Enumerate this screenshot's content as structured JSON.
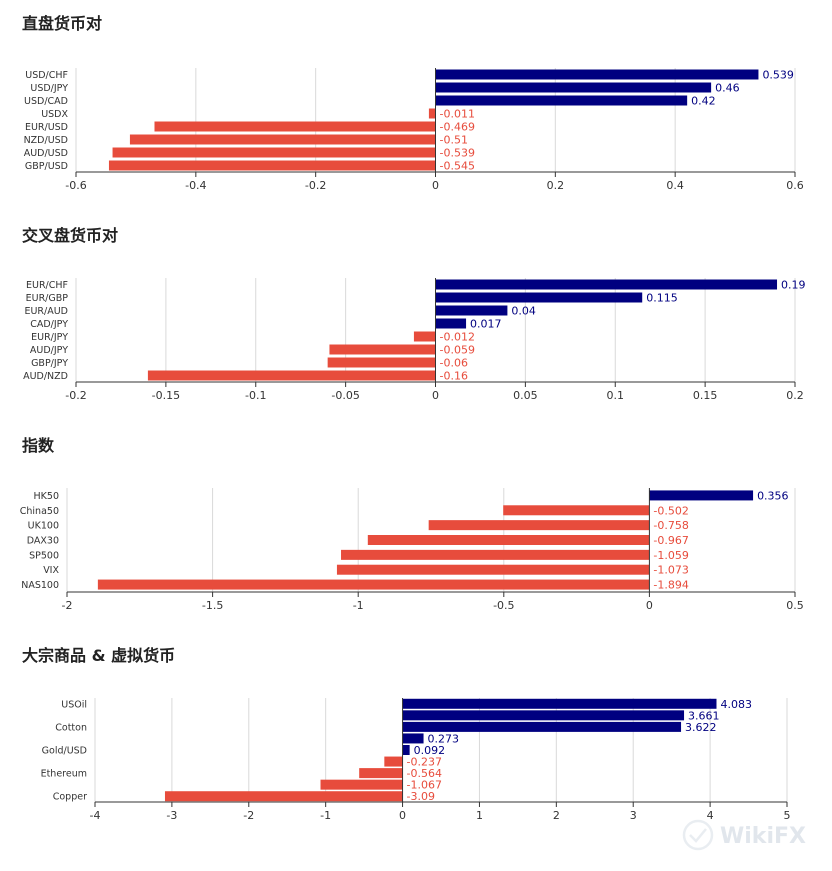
{
  "colors": {
    "positive": "#000080",
    "negative": "#e74c3c",
    "grid": "#d9d9d9",
    "axis": "#333333",
    "tick_text": "#333333"
  },
  "watermark": {
    "text": "WikiFX"
  },
  "chart_data": [
    {
      "type": "bar",
      "orientation": "horizontal",
      "title": "直盘货币对",
      "categories": [
        "USD/CHF",
        "USD/JPY",
        "USD/CAD",
        "USDX",
        "EUR/USD",
        "NZD/USD",
        "AUD/USD",
        "GBP/USD"
      ],
      "values": [
        0.539,
        0.46,
        0.42,
        -0.011,
        -0.469,
        -0.51,
        -0.539,
        -0.545
      ],
      "value_labels": [
        "0.539",
        "0.46",
        "0.42",
        "-0.011",
        "-0.469",
        "-0.51",
        "-0.539",
        "-0.545"
      ],
      "xlim": [
        -0.6,
        0.6
      ],
      "xticks": [
        -0.6,
        -0.4,
        -0.2,
        0,
        0.2,
        0.4,
        0.6
      ],
      "xtick_labels": [
        "-0.6",
        "-0.4",
        "-0.2",
        "0",
        "0.2",
        "0.4",
        "0.6"
      ],
      "category_labels_shown": [
        "USD/CHF",
        "USD/JPY",
        "USD/CAD",
        "USDX",
        "EUR/USD",
        "NZD/USD",
        "AUD/USD",
        "GBP/USD"
      ],
      "grid": true
    },
    {
      "type": "bar",
      "orientation": "horizontal",
      "title": "交叉盘货币对",
      "categories": [
        "EUR/CHF",
        "EUR/GBP",
        "EUR/AUD",
        "CAD/JPY",
        "EUR/JPY",
        "AUD/JPY",
        "GBP/JPY",
        "AUD/NZD"
      ],
      "values": [
        0.19,
        0.115,
        0.04,
        0.017,
        -0.012,
        -0.059,
        -0.06,
        -0.16
      ],
      "value_labels": [
        "0.19",
        "0.115",
        "0.04",
        "0.017",
        "-0.012",
        "-0.059",
        "-0.06",
        "-0.16"
      ],
      "xlim": [
        -0.2,
        0.2
      ],
      "xticks": [
        -0.2,
        -0.15,
        -0.1,
        -0.05,
        0,
        0.05,
        0.1,
        0.15,
        0.2
      ],
      "xtick_labels": [
        "-0.2",
        "-0.15",
        "-0.1",
        "-0.05",
        "0",
        "0.05",
        "0.1",
        "0.15",
        "0.2"
      ],
      "category_labels_shown": [
        "EUR/CHF",
        "EUR/GBP",
        "EUR/AUD",
        "CAD/JPY",
        "EUR/JPY",
        "AUD/JPY",
        "GBP/JPY",
        "AUD/NZD"
      ],
      "grid": true
    },
    {
      "type": "bar",
      "orientation": "horizontal",
      "title": "指数",
      "categories": [
        "HK50",
        "China50",
        "UK100",
        "DAX30",
        "SP500",
        "VIX",
        "NAS100"
      ],
      "values": [
        0.356,
        -0.502,
        -0.758,
        -0.967,
        -1.059,
        -1.073,
        -1.894
      ],
      "value_labels": [
        "0.356",
        "-0.502",
        "-0.758",
        "-0.967",
        "-1.059",
        "-1.073",
        "-1.894"
      ],
      "xlim": [
        -2,
        0.5
      ],
      "xticks": [
        -2,
        -1.5,
        -1,
        -0.5,
        0,
        0.5
      ],
      "xtick_labels": [
        "-2",
        "-1.5",
        "-1",
        "-0.5",
        "0",
        "0.5"
      ],
      "category_labels_shown": [
        "HK50",
        "China50",
        "UK100",
        "DAX30",
        "SP500",
        "VIX",
        "NAS100"
      ],
      "grid": true
    },
    {
      "type": "bar",
      "orientation": "horizontal",
      "title": "大宗商品 & 虚拟货币",
      "categories": [
        "USOil",
        "",
        "Cotton",
        "",
        "Gold/USD",
        "",
        "Ethereum",
        "",
        "Copper"
      ],
      "values": [
        4.083,
        3.661,
        3.622,
        0.273,
        0.092,
        -0.237,
        -0.564,
        -1.067,
        -3.09
      ],
      "value_labels": [
        "4.083",
        "3.661",
        "3.622",
        "0.273",
        "0.092",
        "-0.237",
        "-0.564",
        "-1.067",
        "-3.09"
      ],
      "xlim": [
        -4,
        5
      ],
      "xticks": [
        -4,
        -3,
        -2,
        -1,
        0,
        1,
        2,
        3,
        4,
        5
      ],
      "xtick_labels": [
        "-4",
        "-3",
        "-2",
        "-1",
        "0",
        "1",
        "2",
        "3",
        "4",
        "5"
      ],
      "category_labels_shown": [
        "USOil",
        "",
        "Cotton",
        "",
        "Gold/USD",
        "",
        "Ethereum",
        "",
        "Copper"
      ],
      "grid": true
    }
  ]
}
